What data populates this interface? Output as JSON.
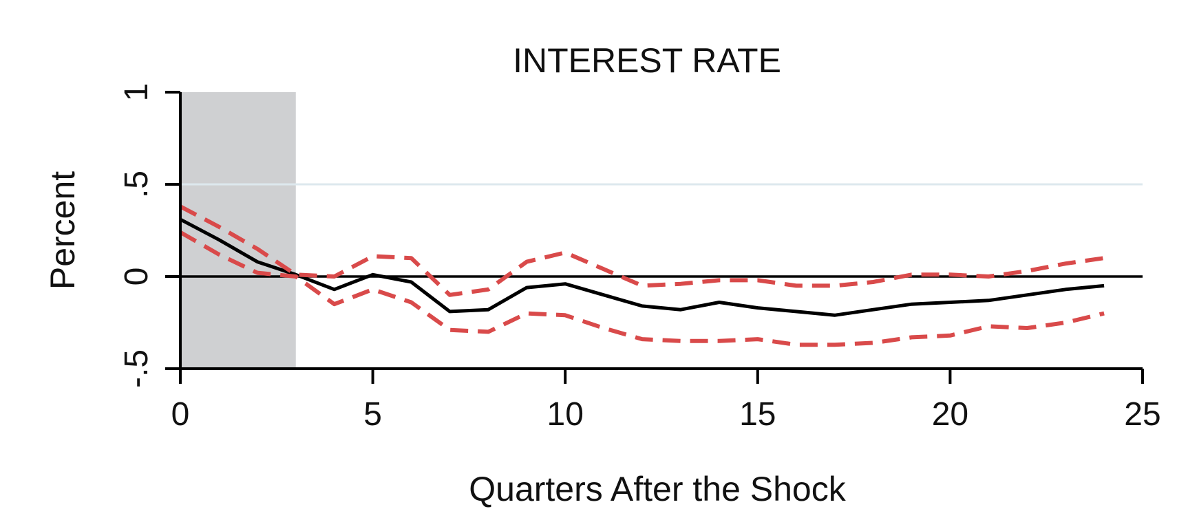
{
  "chart_data": {
    "type": "line",
    "title": "INTEREST RATE",
    "xlabel": "Quarters After the Shock",
    "ylabel": "Percent",
    "xlim": [
      0,
      25
    ],
    "ylim": [
      -0.5,
      1
    ],
    "xticks": [
      0,
      5,
      10,
      15,
      20,
      25
    ],
    "xtick_labels": [
      "0",
      "5",
      "10",
      "15",
      "20",
      "25"
    ],
    "yticks": [
      -0.5,
      0,
      0.5,
      1
    ],
    "ytick_labels": [
      "-.5",
      "0",
      ".5",
      "1"
    ],
    "zero_line": true,
    "gridlines_y": [
      0.5
    ],
    "shaded_region": {
      "x": [
        0,
        3
      ]
    },
    "x": [
      0,
      1,
      2,
      3,
      4,
      5,
      6,
      7,
      8,
      9,
      10,
      11,
      12,
      13,
      14,
      15,
      16,
      17,
      18,
      19,
      20,
      21,
      22,
      23,
      24
    ],
    "series": [
      {
        "role": "estimate",
        "style": "solid",
        "color": "#000000",
        "values": [
          0.31,
          0.2,
          0.08,
          0.01,
          -0.07,
          0.01,
          -0.03,
          -0.19,
          -0.18,
          -0.06,
          -0.04,
          -0.1,
          -0.16,
          -0.18,
          -0.14,
          -0.17,
          -0.19,
          -0.21,
          -0.18,
          -0.15,
          -0.14,
          -0.13,
          -0.1,
          -0.07,
          -0.05
        ]
      },
      {
        "role": "upper-band",
        "style": "dashed",
        "color": "#d94a4a",
        "values": [
          0.38,
          0.27,
          0.15,
          0.01,
          0.0,
          0.11,
          0.1,
          -0.1,
          -0.07,
          0.08,
          0.13,
          0.04,
          -0.05,
          -0.04,
          -0.02,
          -0.02,
          -0.05,
          -0.05,
          -0.03,
          0.01,
          0.01,
          0.0,
          0.03,
          0.07,
          0.1
        ]
      },
      {
        "role": "lower-band",
        "style": "dashed",
        "color": "#d94a4a",
        "values": [
          0.24,
          0.12,
          0.02,
          0.0,
          -0.15,
          -0.07,
          -0.14,
          -0.29,
          -0.3,
          -0.2,
          -0.21,
          -0.28,
          -0.34,
          -0.35,
          -0.35,
          -0.34,
          -0.37,
          -0.37,
          -0.36,
          -0.33,
          -0.32,
          -0.27,
          -0.28,
          -0.25,
          -0.2
        ]
      }
    ]
  }
}
